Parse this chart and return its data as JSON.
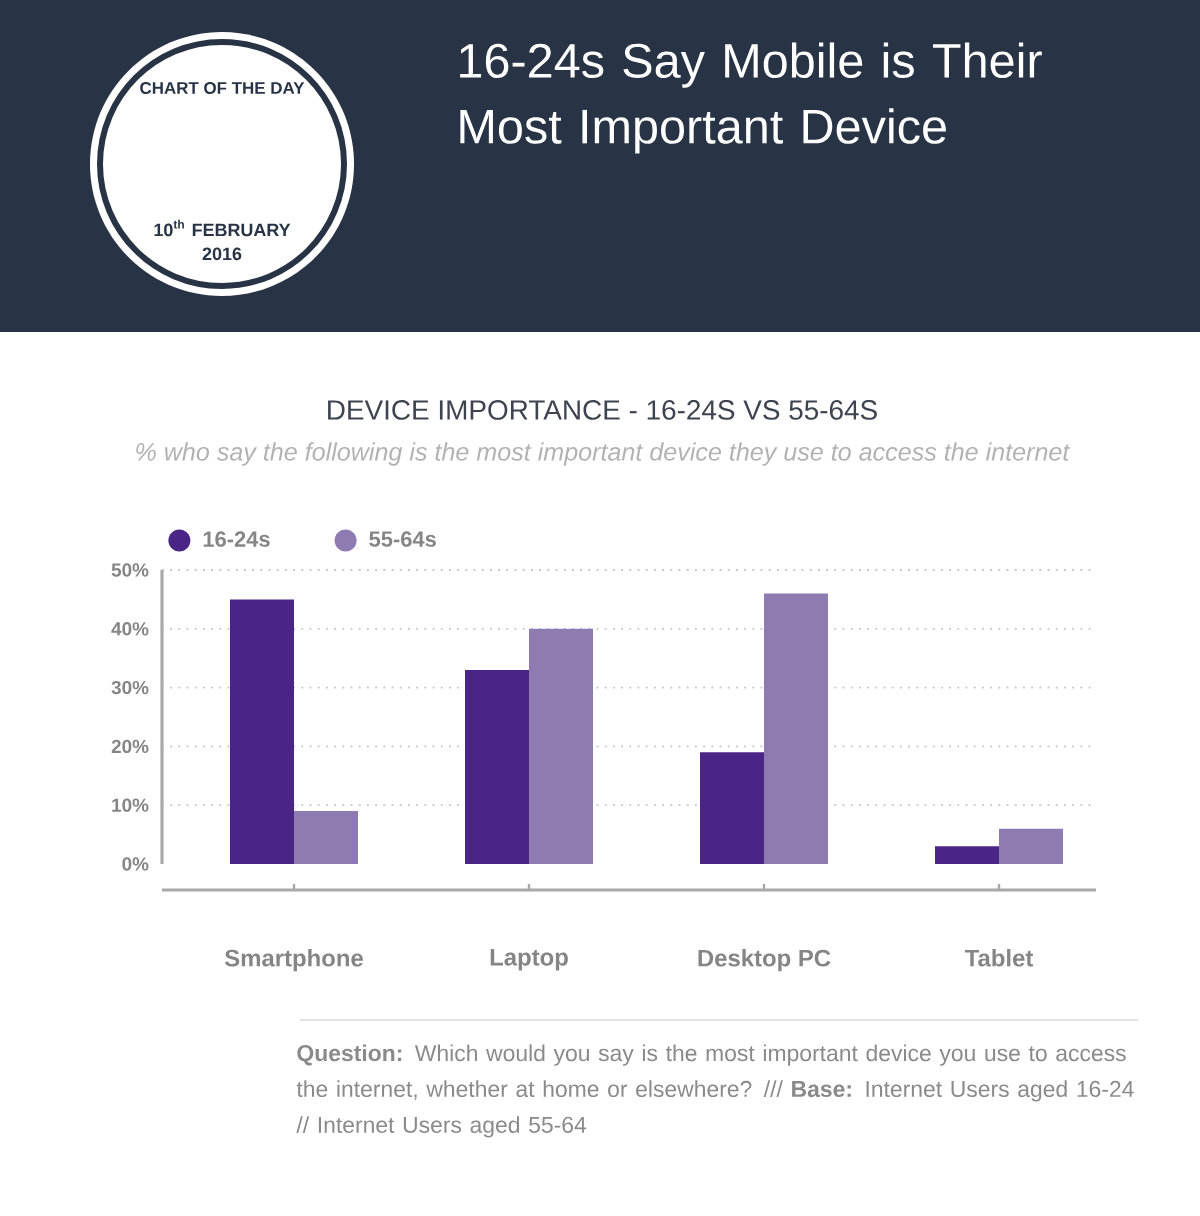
{
  "chart_data": {
    "type": "bar",
    "title": "DEVICE IMPORTANCE - 16-24S VS 55-64S",
    "subtitle": "% who say the following is the most important device they use to access the internet",
    "categories": [
      "Smartphone",
      "Laptop",
      "Desktop PC",
      "Tablet"
    ],
    "series": [
      {
        "name": "16-24s",
        "color": "#4b2585",
        "values": [
          45,
          33,
          19,
          3
        ]
      },
      {
        "name": "55-64s",
        "color": "#8d7bb1",
        "values": [
          9,
          40,
          46,
          6
        ]
      }
    ],
    "ylim": [
      0,
      50
    ],
    "yticks": [
      {
        "value": 0,
        "label": "0%"
      },
      {
        "value": 10,
        "label": "10%"
      },
      {
        "value": 20,
        "label": "20%"
      },
      {
        "value": 30,
        "label": "30%"
      },
      {
        "value": 40,
        "label": "40%"
      },
      {
        "value": 50,
        "label": "50%"
      }
    ],
    "grid": "y",
    "legend": "top left",
    "annotations": [
      "16-24s Say Mobile is Their Most Important Device",
      "CHART OF THE DAY",
      "10$^{th}$ FEBRUARY 2016",
      "**Question:** Which would you say is the most important device you use to access the internet, whether at home or elsewhere? /// **Base:** Internet Users aged 16-24 // Internet Users aged 55-64"
    ]
  }
}
